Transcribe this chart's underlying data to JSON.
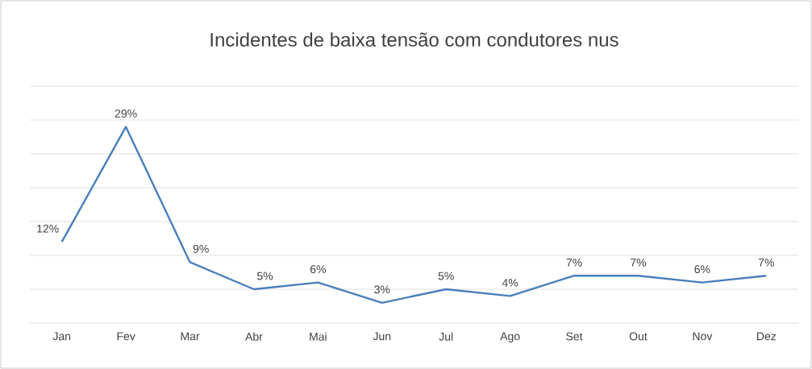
{
  "chart_data": {
    "type": "line",
    "title": "Incidentes de baixa tensão com condutores nus",
    "categories": [
      "Jan",
      "Fev",
      "Mar",
      "Abr",
      "Mai",
      "Jun",
      "Jul",
      "Ago",
      "Set",
      "Out",
      "Nov",
      "Dez"
    ],
    "values": [
      12,
      29,
      9,
      5,
      6,
      3,
      5,
      4,
      7,
      7,
      6,
      7
    ],
    "value_labels": [
      "12%",
      "29%",
      "9%",
      "5%",
      "6%",
      "3%",
      "5%",
      "4%",
      "7%",
      "7%",
      "6%",
      "7%"
    ],
    "color": "#4a7ebb",
    "ylim": [
      0,
      35
    ],
    "yticks": [
      {
        "value": 0,
        "label": null
      },
      {
        "value": 5,
        "label": null
      },
      {
        "value": 10,
        "label": null
      },
      {
        "value": 15,
        "label": null
      },
      {
        "value": 20,
        "label": null
      },
      {
        "value": 25,
        "label": null
      },
      {
        "value": 30,
        "label": null
      },
      {
        "value": 35,
        "label": null
      }
    ],
    "grid": "y",
    "tick_labels": "x",
    "marker": "none",
    "line_style": "solid"
  }
}
